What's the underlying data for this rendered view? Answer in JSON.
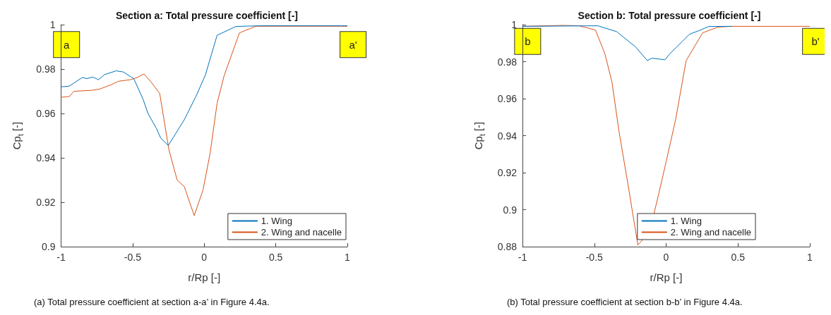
{
  "chart_data": [
    {
      "type": "line",
      "title": "Section a: Total pressure coefficient [-]",
      "xlabel": "r/Rp [-]",
      "ylabel": "Cp$_{t}$ [-]",
      "xlim": [
        -1,
        1
      ],
      "xticks": [
        -1,
        -0.5,
        0,
        0.5,
        1
      ],
      "ylim": [
        0.9,
        1
      ],
      "yticks": [
        0.9,
        0.92,
        0.94,
        0.96,
        0.98,
        1
      ],
      "grid": false,
      "legend": "bottom right",
      "series": [
        {
          "name": "1. Wing",
          "color": "#0072bd",
          "x": [
            -1,
            -0.943,
            -0.852,
            -0.82,
            -0.779,
            -0.738,
            -0.697,
            -0.615,
            -0.566,
            -0.492,
            -0.426,
            -0.393,
            -0.336,
            -0.303,
            -0.251,
            -0.139,
            -0.057,
            0.008,
            0.09,
            0.221,
            0.385,
            1
          ],
          "values": [
            0.972,
            0.9723,
            0.9762,
            0.9757,
            0.9764,
            0.9752,
            0.9775,
            0.9792,
            0.9787,
            0.9757,
            0.9662,
            0.96,
            0.9535,
            0.9488,
            0.9456,
            0.9572,
            0.9678,
            0.9773,
            0.9952,
            0.9992,
            0.9995,
            0.9995
          ]
        },
        {
          "name": "2. Wing and nacelle",
          "color": "#d95319",
          "x": [
            -1,
            -0.943,
            -0.91,
            -0.787,
            -0.73,
            -0.648,
            -0.6,
            -0.516,
            -0.467,
            -0.421,
            -0.369,
            -0.311,
            -0.246,
            -0.189,
            -0.139,
            -0.07,
            -0.008,
            0.041,
            0.09,
            0.139,
            0.246,
            0.361,
            1
          ],
          "values": [
            0.9673,
            0.9676,
            0.97,
            0.9704,
            0.971,
            0.973,
            0.9745,
            0.9752,
            0.9762,
            0.9778,
            0.974,
            0.969,
            0.9435,
            0.93,
            0.927,
            0.914,
            0.9256,
            0.942,
            0.9646,
            0.977,
            0.9963,
            0.9993,
            0.9993
          ]
        }
      ],
      "annotations": [
        {
          "text": "a",
          "x": -0.962,
          "y": 0.991
        },
        {
          "text": "a'",
          "x": 1.04,
          "y": 0.991
        },
        "(a) Total pressure coefficient at section a-a’ in Figure 4.4a."
      ]
    },
    {
      "type": "line",
      "title": "Section b: Total pressure coefficient [-]",
      "xlabel": "r/Rp [-]",
      "ylabel": "Cp$_{t}$ [-]",
      "xlim": [
        -1,
        1
      ],
      "xticks": [
        -1,
        -0.5,
        0,
        0.5,
        1
      ],
      "ylim": [
        0.88,
        1
      ],
      "yticks": [
        0.88,
        0.9,
        0.92,
        0.94,
        0.96,
        0.98,
        1
      ],
      "grid": false,
      "legend": "bottom right",
      "series": [
        {
          "name": "1. Wing",
          "color": "#0072bd",
          "x": [
            -1,
            -0.475,
            -0.344,
            -0.213,
            -0.131,
            -0.098,
            -0.008,
            0.025,
            0.115,
            0.164,
            0.23,
            0.295,
            0.459
          ],
          "values": [
            0.9991,
            0.9994,
            0.9962,
            0.988,
            0.9806,
            0.9819,
            0.981,
            0.9842,
            0.9911,
            0.9949,
            0.9968,
            0.999,
            0.9991
          ]
        },
        {
          "name": "2. Wing and nacelle",
          "color": "#d95319",
          "x": [
            -1,
            -0.721,
            -0.607,
            -0.492,
            -0.426,
            -0.377,
            -0.328,
            -0.262,
            -0.197,
            -0.115,
            -0.049,
            0,
            0.066,
            0.139,
            0.254,
            0.361,
            0.459,
            1
          ],
          "values": [
            0.9991,
            0.9996,
            0.9994,
            0.9971,
            0.9842,
            0.969,
            0.9423,
            0.912,
            0.8809,
            0.8879,
            0.9094,
            0.9259,
            0.9487,
            0.9805,
            0.9956,
            0.9987,
            0.9991,
            0.9991
          ]
        }
      ],
      "annotations": [
        {
          "text": "b",
          "x": -0.964,
          "y": 0.991
        },
        {
          "text": "b'",
          "x": 1.04,
          "y": 0.991
        },
        "(b) Total pressure coefficient at section b-b’ in Figure 4.4a."
      ]
    }
  ]
}
